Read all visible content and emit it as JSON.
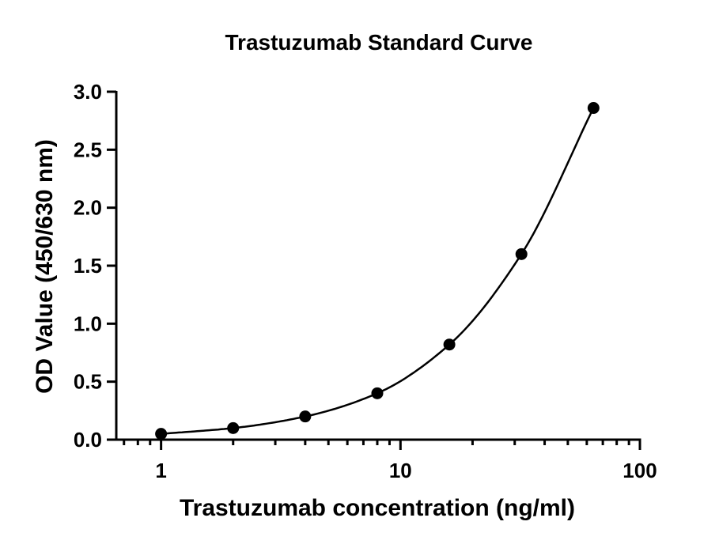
{
  "chart_data": {
    "type": "scatter",
    "title": "Trastuzumab Standard Curve",
    "xlabel": "Trastuzumab concentration (ng/ml)",
    "ylabel": "OD Value (450/630 nm)",
    "x_scale": "log",
    "xlim": [
      0.65,
      100
    ],
    "ylim": [
      0,
      3.0
    ],
    "x_ticks": [
      1,
      10,
      100
    ],
    "x_tick_labels": [
      "1",
      "10",
      "100"
    ],
    "y_ticks": [
      0,
      0.5,
      1.0,
      1.5,
      2.0,
      2.5,
      3.0
    ],
    "y_tick_labels": [
      "0.0",
      "0.5",
      "1.0",
      "1.5",
      "2.0",
      "2.5",
      "3.0"
    ],
    "grid": false,
    "series": [
      {
        "x": [
          1,
          2,
          4,
          8,
          16,
          32,
          64
        ],
        "y": [
          0.05,
          0.1,
          0.2,
          0.4,
          0.82,
          1.6,
          2.86
        ],
        "marker": "circle",
        "fit_curve": true
      }
    ],
    "colors": {
      "marker": "#000000",
      "curve": "#000000",
      "axis": "#000000"
    }
  }
}
